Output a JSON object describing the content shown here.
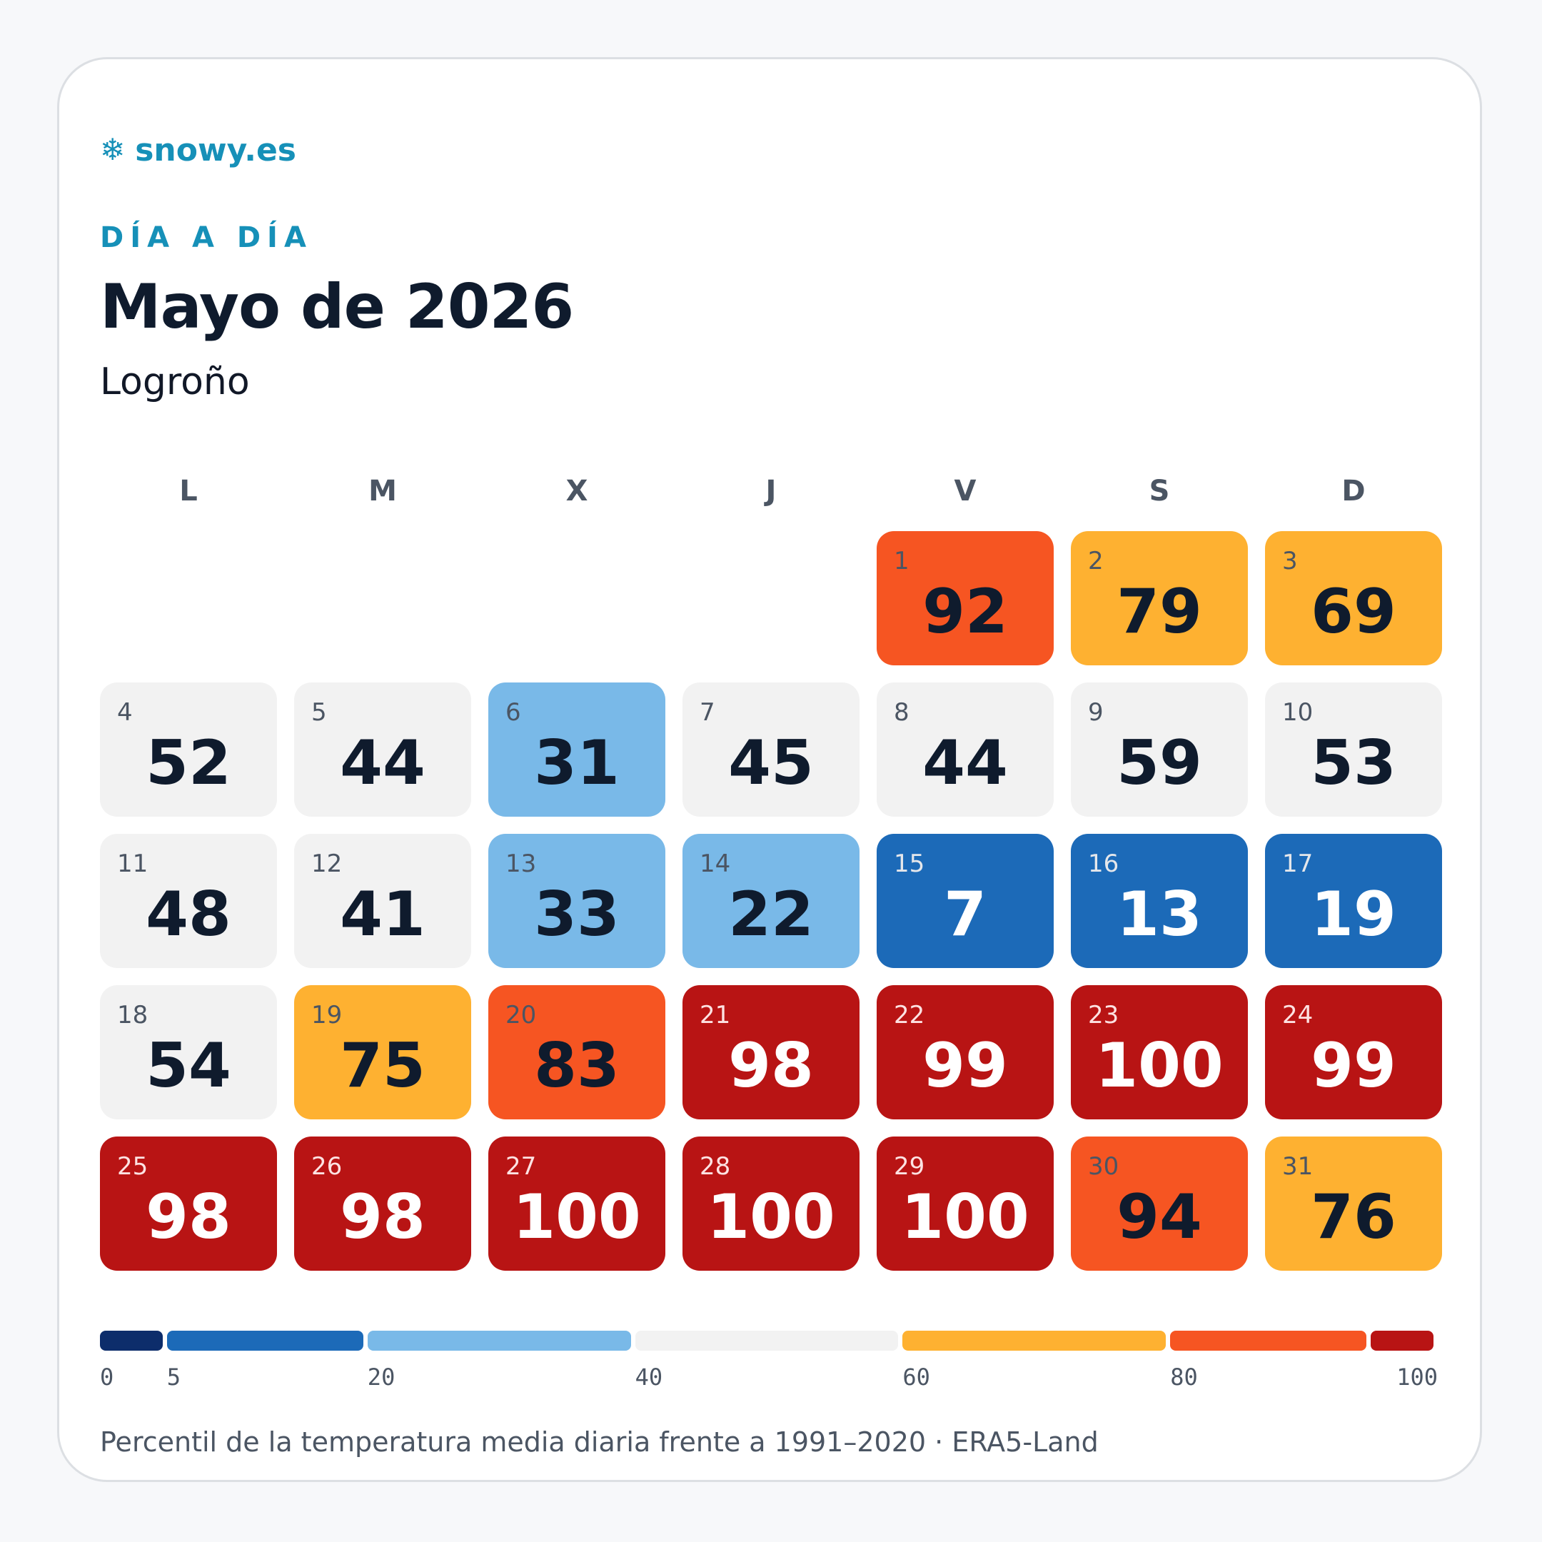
{
  "brand": {
    "icon": "❄",
    "icon_name": "snowflake-icon",
    "name": "snowy.es"
  },
  "eyebrow": "DÍA A DÍA",
  "title": "Mayo de 2026",
  "subtitle": "Logroño",
  "weekdays": [
    "L",
    "M",
    "X",
    "J",
    "V",
    "S",
    "D"
  ],
  "footnote": "Percentil de la temperatura media diaria frente a 1991–2020 · ERA5-Land",
  "chart_data": {
    "type": "heatmap",
    "title": "Mayo de 2026",
    "first_weekday_index": 4,
    "days": [
      1,
      2,
      3,
      4,
      5,
      6,
      7,
      8,
      9,
      10,
      11,
      12,
      13,
      14,
      15,
      16,
      17,
      18,
      19,
      20,
      21,
      22,
      23,
      24,
      25,
      26,
      27,
      28,
      29,
      30,
      31
    ],
    "values": [
      92,
      79,
      69,
      52,
      44,
      31,
      45,
      44,
      59,
      53,
      48,
      41,
      33,
      22,
      7,
      13,
      19,
      54,
      75,
      83,
      98,
      99,
      100,
      99,
      98,
      98,
      100,
      100,
      100,
      94,
      76
    ],
    "color_scale": [
      {
        "from": 0,
        "to": 5,
        "color": "#0d2d6b"
      },
      {
        "from": 5,
        "to": 20,
        "color": "#1c6ab8"
      },
      {
        "from": 20,
        "to": 40,
        "color": "#79b9e8"
      },
      {
        "from": 40,
        "to": 60,
        "color": "#f2f2f2"
      },
      {
        "from": 60,
        "to": 80,
        "color": "#feb131"
      },
      {
        "from": 80,
        "to": 95,
        "color": "#f65522"
      },
      {
        "from": 95,
        "to": 100,
        "color": "#b81414"
      }
    ],
    "legend_ticks": [
      "0",
      "5",
      "20",
      "40",
      "60",
      "80",
      "100"
    ]
  }
}
